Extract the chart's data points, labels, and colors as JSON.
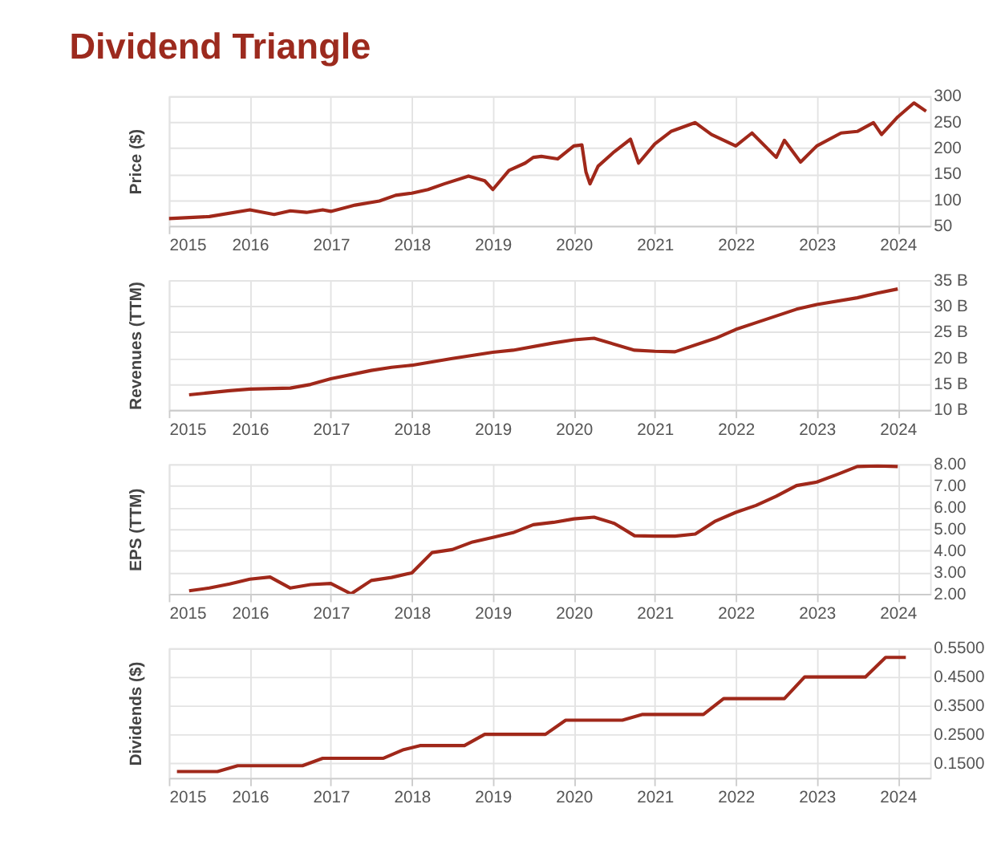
{
  "chart_data": [
    {
      "type": "line",
      "title": "Dividend Triangle",
      "ylabel": "Price ($)",
      "grid": true,
      "marker": "none",
      "line_style": "solid",
      "xlim": [
        2015,
        2024.4
      ],
      "xticks": [
        2015,
        2016,
        2017,
        2018,
        2019,
        2020,
        2021,
        2022,
        2023,
        2024
      ],
      "ylim": [
        50,
        300
      ],
      "yticks": [
        50,
        100,
        150,
        200,
        250,
        300
      ],
      "series": [
        {
          "color": "#a0281a",
          "x": [
            2015.0,
            2015.5,
            2016.0,
            2016.3,
            2016.5,
            2016.7,
            2016.9,
            2017.0,
            2017.3,
            2017.6,
            2017.8,
            2018.0,
            2018.2,
            2018.4,
            2018.7,
            2018.9,
            2019.0,
            2019.2,
            2019.4,
            2019.5,
            2019.6,
            2019.8,
            2020.0,
            2020.1,
            2020.15,
            2020.2,
            2020.3,
            2020.5,
            2020.7,
            2020.8,
            2021.0,
            2021.2,
            2021.5,
            2021.7,
            2022.0,
            2022.2,
            2022.5,
            2022.6,
            2022.8,
            2023.0,
            2023.3,
            2023.5,
            2023.7,
            2023.8,
            2024.0,
            2024.2,
            2024.35
          ],
          "values": [
            64,
            68,
            81,
            72,
            79,
            76,
            81,
            78,
            90,
            98,
            109,
            113,
            120,
            131,
            146,
            137,
            120,
            157,
            171,
            182,
            184,
            179,
            204,
            206,
            154,
            131,
            165,
            193,
            217,
            171,
            208,
            232,
            249,
            226,
            204,
            229,
            182,
            215,
            173,
            204,
            229,
            232,
            249,
            226,
            260,
            287,
            271
          ]
        }
      ]
    },
    {
      "type": "line",
      "ylabel": "Revenues (TTM)",
      "grid": true,
      "marker": "none",
      "line_style": "solid",
      "xlim": [
        2015,
        2024.4
      ],
      "xticks": [
        2015,
        2016,
        2017,
        2018,
        2019,
        2020,
        2021,
        2022,
        2023,
        2024
      ],
      "ylim": [
        10,
        35
      ],
      "yticks": [
        {
          "value": 10,
          "label": "10 B"
        },
        {
          "value": 15,
          "label": "15 B"
        },
        {
          "value": 20,
          "label": "20 B"
        },
        {
          "value": 25,
          "label": "25 B"
        },
        {
          "value": 30,
          "label": "30 B"
        },
        {
          "value": 35,
          "label": "35 B"
        }
      ],
      "series": [
        {
          "color": "#a0281a",
          "x": [
            2015.25,
            2015.75,
            2016.0,
            2016.5,
            2016.75,
            2017.0,
            2017.5,
            2017.75,
            2018.0,
            2018.5,
            2019.0,
            2019.25,
            2019.75,
            2020.0,
            2020.25,
            2020.75,
            2021.0,
            2021.25,
            2021.75,
            2022.0,
            2022.25,
            2022.75,
            2023.0,
            2023.5,
            2023.75,
            2024.0
          ],
          "values": [
            12.9,
            13.7,
            14.0,
            14.2,
            14.9,
            16.0,
            17.6,
            18.2,
            18.6,
            19.9,
            21.1,
            21.5,
            22.9,
            23.5,
            23.8,
            21.5,
            21.3,
            21.2,
            23.8,
            25.5,
            26.8,
            29.4,
            30.3,
            31.6,
            32.5,
            33.3
          ]
        }
      ]
    },
    {
      "type": "line",
      "ylabel": "EPS (TTM)",
      "grid": true,
      "marker": "none",
      "line_style": "solid",
      "xlim": [
        2015,
        2024.4
      ],
      "xticks": [
        2015,
        2016,
        2017,
        2018,
        2019,
        2020,
        2021,
        2022,
        2023,
        2024
      ],
      "ylim": [
        2,
        8
      ],
      "yticks": [
        {
          "value": 2,
          "label": "2.00"
        },
        {
          "value": 3,
          "label": "3.00"
        },
        {
          "value": 4,
          "label": "4.00"
        },
        {
          "value": 5,
          "label": "5.00"
        },
        {
          "value": 6,
          "label": "6.00"
        },
        {
          "value": 7,
          "label": "7.00"
        },
        {
          "value": 8,
          "label": "8.00"
        }
      ],
      "series": [
        {
          "color": "#a0281a",
          "x": [
            2015.25,
            2015.5,
            2015.75,
            2016.0,
            2016.25,
            2016.5,
            2016.75,
            2017.0,
            2017.25,
            2017.5,
            2017.75,
            2018.0,
            2018.25,
            2018.5,
            2018.75,
            2019.0,
            2019.25,
            2019.5,
            2019.75,
            2020.0,
            2020.25,
            2020.5,
            2020.75,
            2021.0,
            2021.25,
            2021.5,
            2021.75,
            2022.0,
            2022.25,
            2022.5,
            2022.75,
            2023.0,
            2023.25,
            2023.5,
            2023.75,
            2024.0
          ],
          "values": [
            2.14,
            2.27,
            2.46,
            2.68,
            2.78,
            2.27,
            2.43,
            2.48,
            2.0,
            2.62,
            2.76,
            2.97,
            3.91,
            4.05,
            4.4,
            4.61,
            4.83,
            5.2,
            5.31,
            5.47,
            5.55,
            5.26,
            4.69,
            4.67,
            4.67,
            4.77,
            5.37,
            5.77,
            6.09,
            6.52,
            7.01,
            7.17,
            7.52,
            7.89,
            7.92,
            7.89
          ]
        }
      ]
    },
    {
      "type": "line",
      "ylabel": "Dividends ($)",
      "grid": true,
      "marker": "none",
      "line_style": "solid",
      "xlim": [
        2015,
        2024.4
      ],
      "xticks": [
        2015,
        2016,
        2017,
        2018,
        2019,
        2020,
        2021,
        2022,
        2023,
        2024
      ],
      "ylim": [
        0.1,
        0.55
      ],
      "yticks": [
        {
          "value": 0.15,
          "label": "0.1500"
        },
        {
          "value": 0.25,
          "label": "0.2500"
        },
        {
          "value": 0.35,
          "label": "0.3500"
        },
        {
          "value": 0.45,
          "label": "0.4500"
        },
        {
          "value": 0.55,
          "label": "0.5500"
        }
      ],
      "series": [
        {
          "color": "#a0281a",
          "x": [
            2015.1,
            2015.6,
            2015.85,
            2016.65,
            2016.9,
            2017.65,
            2017.9,
            2018.1,
            2018.65,
            2018.9,
            2019.65,
            2019.9,
            2020.6,
            2020.85,
            2021.6,
            2021.85,
            2022.6,
            2022.85,
            2023.6,
            2023.85,
            2024.1
          ],
          "values": [
            0.122,
            0.122,
            0.142,
            0.142,
            0.168,
            0.168,
            0.198,
            0.212,
            0.212,
            0.251,
            0.251,
            0.3,
            0.3,
            0.32,
            0.32,
            0.375,
            0.375,
            0.45,
            0.45,
            0.518,
            0.518
          ]
        }
      ]
    }
  ]
}
